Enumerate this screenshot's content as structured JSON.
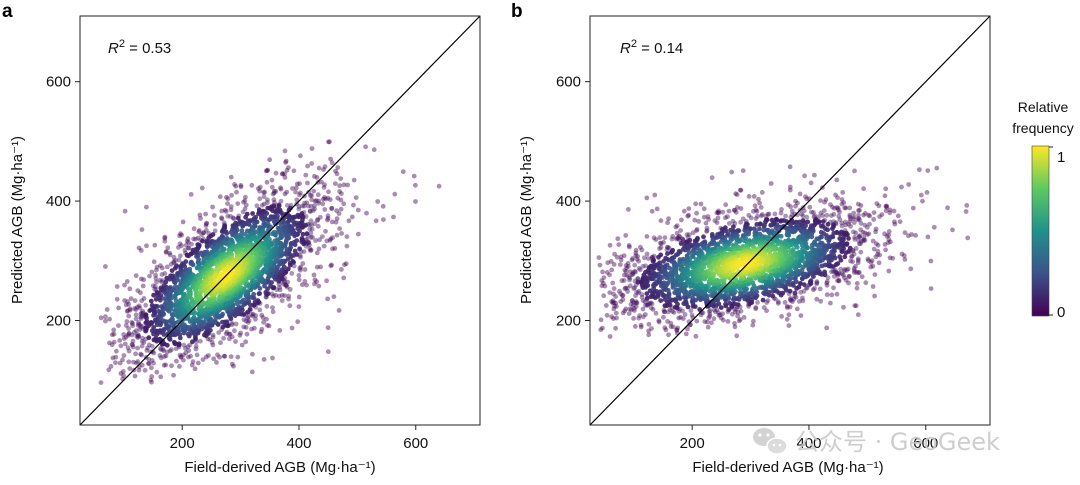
{
  "figure": {
    "colorbar": {
      "title_line1": "Relative",
      "title_line2": "frequency",
      "max_label": "1",
      "min_label": "0",
      "colormap": [
        "#440154",
        "#3b528b",
        "#21918c",
        "#5ec962",
        "#fde725"
      ]
    },
    "watermark": "公众号 · GeoGeek",
    "line_color": "#000000",
    "point_color": "#440154"
  },
  "chart_data": [
    {
      "type": "scatter",
      "panel_label": "a",
      "annotation_prefix": "R",
      "annotation_sup": "2",
      "annotation_value": " = 0.53",
      "r2": 0.53,
      "xlabel": "Field-derived AGB (Mg·ha⁻¹)",
      "ylabel": "Predicted AGB (Mg·ha⁻¹)",
      "xlim": [
        25,
        710
      ],
      "ylim": [
        25,
        710
      ],
      "xticks": [
        "200",
        "400",
        "600"
      ],
      "yticks": [
        "200",
        "400",
        "600"
      ],
      "xtick_values": [
        200,
        400,
        600
      ],
      "ytick_values": [
        200,
        400,
        600
      ],
      "reference_line": "1:1",
      "density": {
        "center": [
          275,
          275
        ],
        "sd_major": 95,
        "sd_minor": 40,
        "angle_deg": 38,
        "x_range": [
          60,
          680
        ],
        "y_range": [
          95,
          500
        ]
      }
    },
    {
      "type": "scatter",
      "panel_label": "b",
      "annotation_prefix": "R",
      "annotation_sup": "2",
      "annotation_value": " = 0.14",
      "r2": 0.14,
      "xlabel": "Field-derived AGB (Mg·ha⁻¹)",
      "ylabel": "Predicted AGB (Mg·ha⁻¹)",
      "xlim": [
        25,
        710
      ],
      "ylim": [
        25,
        710
      ],
      "xticks": [
        "200",
        "400",
        "600"
      ],
      "yticks": [
        "200",
        "400",
        "600"
      ],
      "xtick_values": [
        200,
        400,
        600
      ],
      "ytick_values": [
        200,
        400,
        600
      ],
      "reference_line": "1:1",
      "density": {
        "center": [
          290,
          295
        ],
        "sd_major": 105,
        "sd_minor": 38,
        "angle_deg": 12,
        "x_range": [
          40,
          680
        ],
        "y_range": [
          165,
          460
        ]
      }
    }
  ]
}
